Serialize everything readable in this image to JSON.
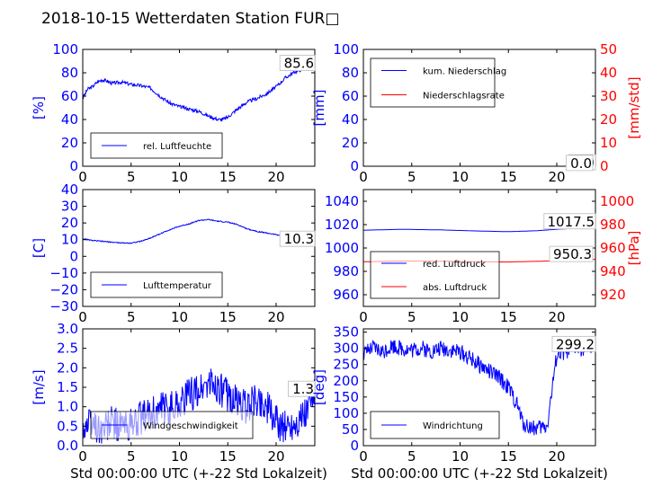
{
  "title": "2018-10-15 Wetterdaten Station FUR□",
  "colors": {
    "primary": "#0000ff",
    "secondary": "#ff0000",
    "axis": "#000000",
    "annotation_bg": "#ffffff",
    "annotation_edge": "#bbbbbb"
  },
  "chart_data": [
    {
      "id": "humidity",
      "type": "line",
      "xlim": [
        0,
        24
      ],
      "xticks": [
        0,
        5,
        10,
        15,
        20
      ],
      "ylabel": "[%]",
      "ylim": [
        0,
        100
      ],
      "yticks": [
        0,
        20,
        40,
        60,
        80,
        100
      ],
      "xlabel": "",
      "annotation": "85.6",
      "series": [
        {
          "name": "rel. Luftfeuchte",
          "axis": "left",
          "color": "#0000ff",
          "noise": 1.5,
          "x": [
            0,
            0.5,
            1,
            1.5,
            2,
            2.5,
            3,
            4,
            5,
            6,
            7,
            8,
            9,
            10,
            11,
            12,
            13,
            14,
            14.5,
            15,
            16,
            17,
            18,
            19,
            20,
            21,
            22,
            23,
            24
          ],
          "y": [
            58,
            66,
            68,
            72,
            74,
            73,
            71,
            72,
            70,
            69,
            67,
            60,
            54,
            51,
            49,
            47,
            43,
            40,
            40,
            42,
            49,
            55,
            58,
            62,
            68,
            76,
            81,
            84,
            86
          ]
        }
      ]
    },
    {
      "id": "precip",
      "type": "line",
      "xlim": [
        0,
        24
      ],
      "xticks": [
        0,
        5,
        10,
        15,
        20
      ],
      "ylabel": "[mm]",
      "ylim": [
        0,
        100
      ],
      "yticks": [
        0,
        20,
        40,
        60,
        80,
        100
      ],
      "y2label": "[mm/std]",
      "y2lim": [
        0,
        50
      ],
      "y2ticks": [
        0,
        10,
        20,
        30,
        40,
        50
      ],
      "xlabel": "",
      "annotation": "0.0",
      "annotation2": "0.0",
      "series": [
        {
          "name": "kum. Niederschlag",
          "axis": "left",
          "color": "#0000ff",
          "noise": 0,
          "x": [
            0,
            24
          ],
          "y": [
            0,
            0
          ]
        },
        {
          "name": "Niederschlagsrate",
          "axis": "right",
          "color": "#ff0000",
          "noise": 0,
          "x": [
            0,
            24
          ],
          "y": [
            0,
            0
          ]
        }
      ]
    },
    {
      "id": "temperature",
      "type": "line",
      "xlim": [
        0,
        24
      ],
      "xticks": [
        0,
        5,
        10,
        15,
        20
      ],
      "ylabel": "[C]",
      "ylim": [
        -30,
        40
      ],
      "yticks": [
        -30,
        -20,
        -10,
        0,
        10,
        20,
        30,
        40
      ],
      "xlabel": "",
      "annotation": "10.3",
      "series": [
        {
          "name": "Lufttemperatur",
          "axis": "left",
          "color": "#0000ff",
          "noise": 0.3,
          "x": [
            0,
            1,
            2,
            3,
            4,
            5,
            6,
            7,
            8,
            9,
            10,
            11,
            12,
            13,
            14,
            15,
            16,
            17,
            18,
            19,
            20,
            21,
            22,
            23,
            24
          ],
          "y": [
            10.5,
            9.5,
            9,
            8.5,
            8,
            8,
            9,
            11,
            13.5,
            16,
            18,
            19.5,
            21.5,
            22,
            21,
            20.5,
            19,
            16.5,
            15,
            14,
            13,
            12,
            11,
            10.5,
            10.3
          ]
        }
      ]
    },
    {
      "id": "pressure",
      "type": "line",
      "xlim": [
        0,
        24
      ],
      "xticks": [
        0,
        5,
        10,
        15,
        20
      ],
      "ylim": [
        950,
        1050
      ],
      "yticks": [
        960,
        980,
        1000,
        1020,
        1040
      ],
      "y2label": "[hPa]",
      "y2lim": [
        910,
        1010
      ],
      "y2ticks": [
        920,
        940,
        960,
        980,
        1000
      ],
      "xlabel": "",
      "annotation": "1017.5",
      "annotation2": "950.3",
      "series": [
        {
          "name": "red. Luftdruck",
          "axis": "left",
          "color": "#0000ff",
          "noise": 0,
          "x": [
            0,
            4,
            8,
            12,
            15,
            18,
            20,
            22,
            24
          ],
          "y": [
            1015.2,
            1016,
            1015.5,
            1014.5,
            1014,
            1014.8,
            1016,
            1017,
            1017.5
          ]
        },
        {
          "name": "abs. Luftdruck",
          "axis": "right",
          "color": "#ff0000",
          "noise": 0,
          "x": [
            0,
            4,
            8,
            12,
            15,
            18,
            20,
            22,
            24
          ],
          "y": [
            948.2,
            948.8,
            948.7,
            948.2,
            948,
            948.6,
            949.2,
            949.8,
            950.3
          ]
        }
      ]
    },
    {
      "id": "windspeed",
      "type": "line",
      "xlim": [
        0,
        24
      ],
      "xticks": [
        0,
        5,
        10,
        15,
        20
      ],
      "ylabel": "[m/s]",
      "ylim": [
        0,
        3
      ],
      "yticks": [
        0,
        0.5,
        1,
        1.5,
        2,
        2.5,
        3
      ],
      "yticklabels": [
        "0.0",
        "0.5",
        "1.0",
        "1.5",
        "2.0",
        "2.5",
        "3.0"
      ],
      "xlabel": "Std 00:00:00 UTC (+-22 Std Lokalzeit)",
      "annotation": "1.3",
      "series": [
        {
          "name": "Windgeschwindigkeit",
          "axis": "left",
          "color": "#0000ff",
          "noise": 0.45,
          "x": [
            0,
            1,
            2,
            3,
            4,
            5,
            6,
            7,
            8,
            9,
            10,
            11,
            12,
            13,
            14,
            15,
            16,
            17,
            18,
            19,
            20,
            21,
            22,
            23,
            24
          ],
          "y": [
            0.5,
            0.6,
            0.4,
            0.6,
            0.5,
            0.5,
            0.7,
            0.8,
            0.9,
            1.0,
            1.1,
            1.3,
            1.4,
            1.6,
            1.5,
            1.3,
            1.1,
            1.0,
            1.2,
            1.0,
            0.6,
            0.5,
            0.6,
            0.8,
            1.3
          ]
        }
      ]
    },
    {
      "id": "winddir",
      "type": "line",
      "xlim": [
        0,
        24
      ],
      "xticks": [
        0,
        5,
        10,
        15,
        20
      ],
      "ylabel": "[deg]",
      "ylim": [
        0,
        360
      ],
      "yticks": [
        0,
        50,
        100,
        150,
        200,
        250,
        300,
        350
      ],
      "xlabel": "Std 00:00:00 UTC (+-22 Std Lokalzeit)",
      "annotation": "299.2",
      "series": [
        {
          "name": "Windrichtung",
          "axis": "left",
          "color": "#0000ff",
          "noise": 25,
          "x": [
            0,
            1,
            2,
            3,
            4,
            5,
            6,
            7,
            8,
            9,
            10,
            11,
            12,
            13,
            14,
            15,
            16,
            16.5,
            17,
            18,
            19,
            20,
            21,
            22,
            23,
            24
          ],
          "y": [
            280,
            300,
            290,
            310,
            300,
            295,
            300,
            290,
            300,
            295,
            290,
            270,
            250,
            230,
            210,
            180,
            120,
            70,
            60,
            55,
            60,
            280,
            290,
            300,
            300,
            299
          ]
        }
      ]
    }
  ]
}
